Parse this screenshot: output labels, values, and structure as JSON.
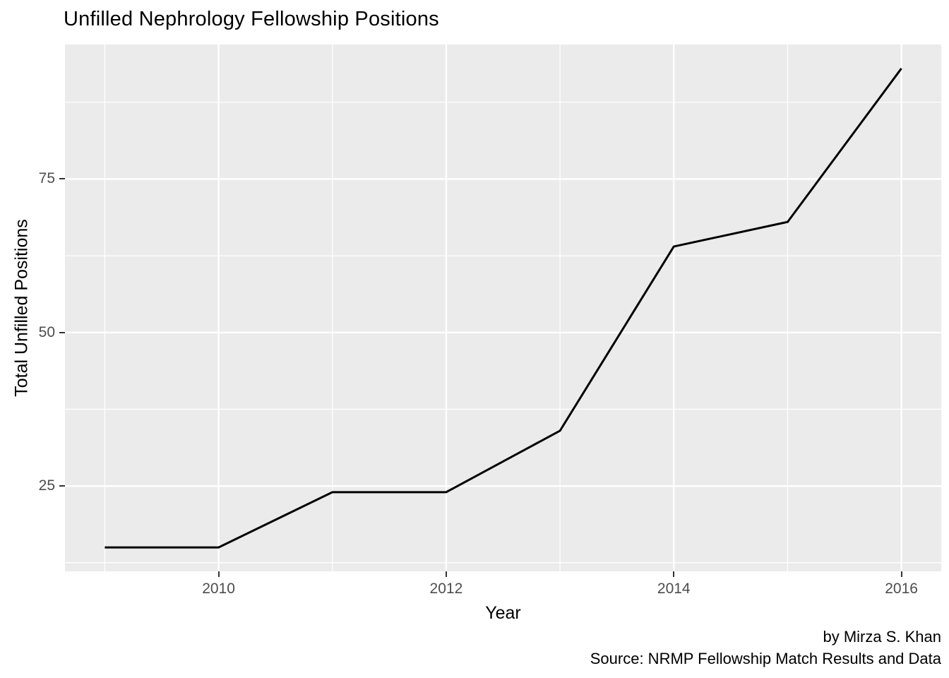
{
  "title": "Unfilled Nephrology Fellowship Positions",
  "caption": {
    "line1": "by Mirza S. Khan",
    "line2": "Source: NRMP Fellowship Match Results and Data"
  },
  "chart_data": {
    "type": "line",
    "title": "Unfilled Nephrology Fellowship Positions",
    "xlabel": "Year",
    "ylabel": "Total Unfilled Positions",
    "x": [
      2009,
      2010,
      2011,
      2012,
      2013,
      2014,
      2015,
      2016
    ],
    "series": [
      {
        "name": "Total Unfilled Positions",
        "values": [
          15,
          15,
          24,
          24,
          34,
          64,
          68,
          93
        ]
      }
    ],
    "x_ticks": [
      2010,
      2012,
      2014,
      2016
    ],
    "y_ticks": [
      25,
      50,
      75
    ],
    "x_minor_step": 1,
    "y_minor_step": 12.5,
    "axis_expansion": 0.05,
    "grid": true,
    "legend": false,
    "caption": "by Mirza S. Khan\nSource: NRMP Fellowship Match Results and Data",
    "style": {
      "panel_bg": "#EBEBEB",
      "grid_color": "#FFFFFF",
      "line_color": "#000000",
      "tick_label_color": "#4D4D4D",
      "tick_mark_color": "#333333",
      "text_color": "#000000"
    }
  }
}
